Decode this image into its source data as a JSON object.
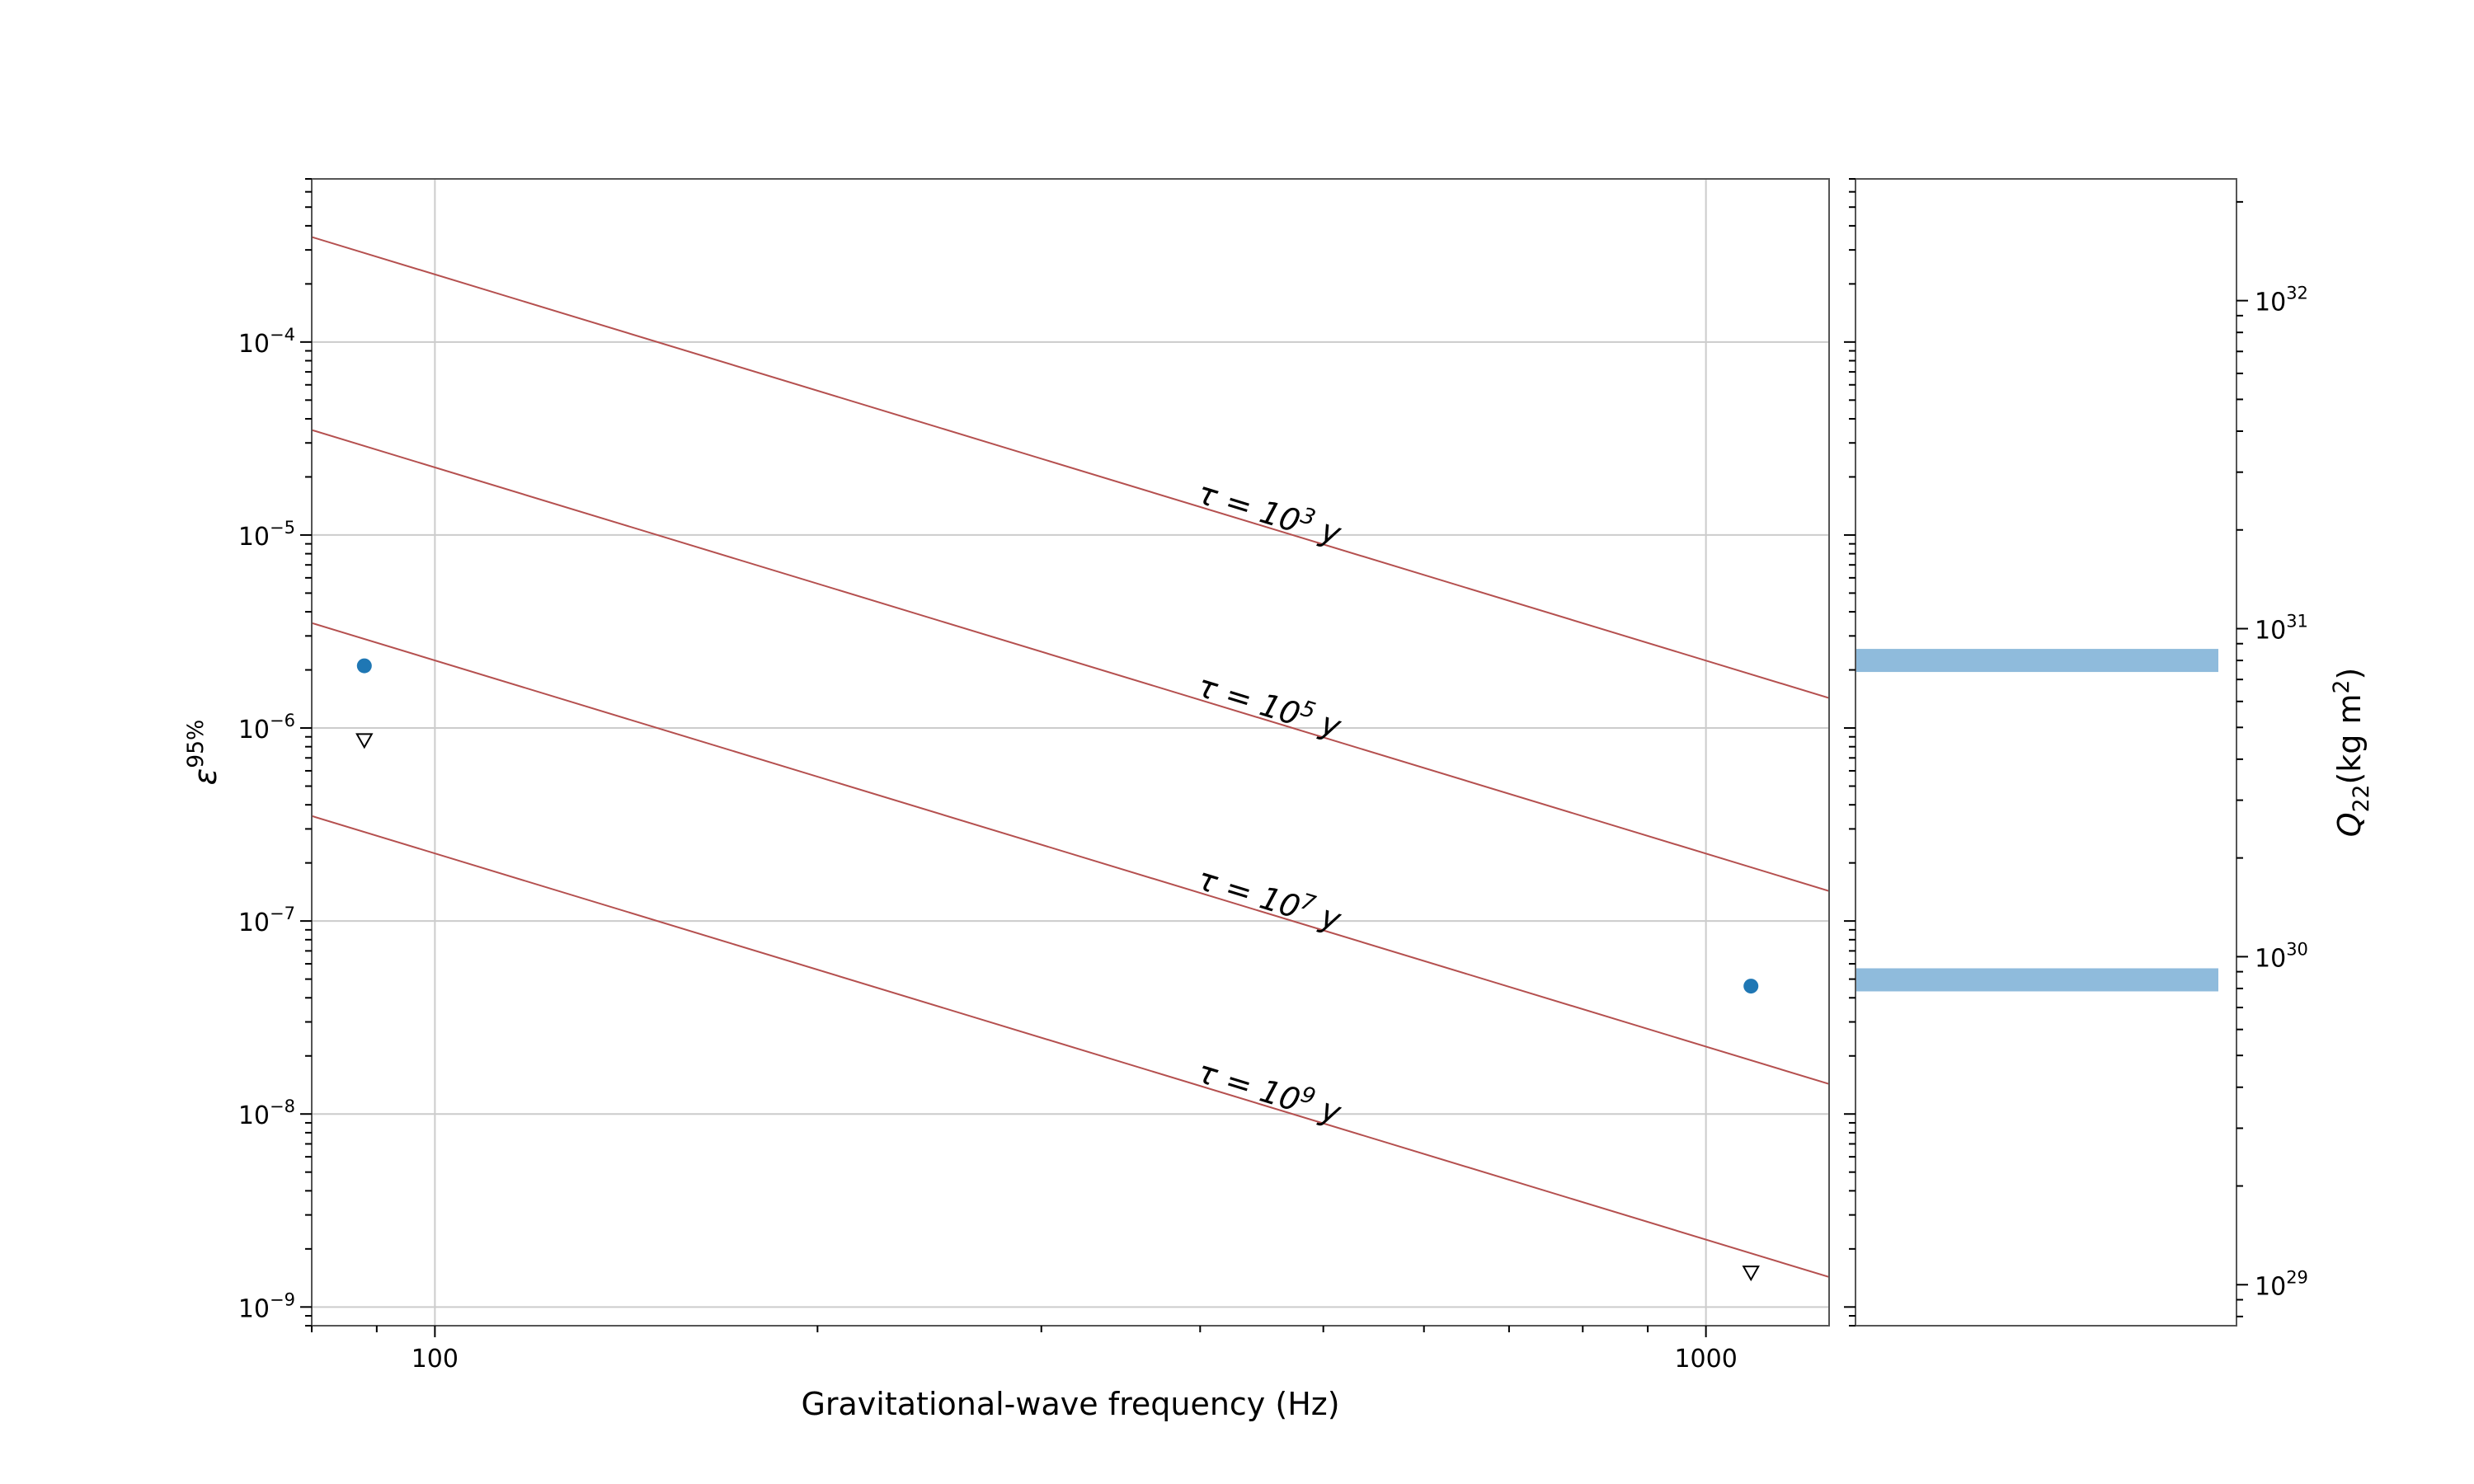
{
  "chart_data": [
    {
      "type": "scatter",
      "xlabel": "Gravitational-wave frequency (Hz)",
      "ylabel": "ε",
      "ylabel_sup": "95%",
      "xscale": "log",
      "yscale": "log",
      "xlim": [
        80,
        1250
      ],
      "ylim": [
        8e-10,
        0.0007
      ],
      "grid": true,
      "x_ticks": [
        {
          "value": 100,
          "label": "100"
        },
        {
          "value": 1000,
          "label": "1000"
        }
      ],
      "y_ticks": [
        {
          "value": 1e-09,
          "base": "10",
          "exp": "−9"
        },
        {
          "value": 1e-08,
          "base": "10",
          "exp": "−8"
        },
        {
          "value": 1e-07,
          "base": "10",
          "exp": "−7"
        },
        {
          "value": 1e-06,
          "base": "10",
          "exp": "−6"
        },
        {
          "value": 1e-05,
          "base": "10",
          "exp": "−5"
        },
        {
          "value": 0.0001,
          "base": "10",
          "exp": "−4"
        }
      ],
      "spin_down_lines": [
        {
          "label_pre": "τ = 10",
          "label_exp": "3",
          "label_post": " y",
          "x": [
            80,
            1250
          ],
          "y": [
            0.00035,
            1.43e-06
          ],
          "label_x": 450
        },
        {
          "label_pre": "τ = 10",
          "label_exp": "5",
          "label_post": " y",
          "x": [
            80,
            1250
          ],
          "y": [
            3.5e-05,
            1.43e-07
          ],
          "label_x": 450
        },
        {
          "label_pre": "τ = 10",
          "label_exp": "7",
          "label_post": " y",
          "x": [
            80,
            1250
          ],
          "y": [
            3.5e-06,
            1.43e-08
          ],
          "label_x": 450
        },
        {
          "label_pre": "τ = 10",
          "label_exp": "9",
          "label_post": " y",
          "x": [
            80,
            1250
          ],
          "y": [
            3.5e-07,
            1.43e-09
          ],
          "label_x": 450
        }
      ],
      "series": [
        {
          "marker": "circle",
          "points": [
            {
              "x": 88,
              "y": 2.1e-06
            },
            {
              "x": 1085,
              "y": 4.6e-08
            }
          ]
        },
        {
          "marker": "triangle-down",
          "points": [
            {
              "x": 88,
              "y": 8.6e-07
            },
            {
              "x": 1085,
              "y": 1.5e-09
            }
          ]
        }
      ],
      "colors": {
        "line": "#b5504f",
        "point": "#1f77b4",
        "grid": "#cccccc"
      }
    },
    {
      "type": "bar",
      "orientation": "horizontal-band",
      "ylabel": "Q",
      "ylabel_sub": "22",
      "ylabel_unit": "(kg m",
      "ylabel_unit_sup": "2",
      "ylabel_unit_end": ")",
      "yscale": "log",
      "ylim": [
        7.5e+28,
        2.35e+32
      ],
      "y_ticks": [
        {
          "value": 1e+29,
          "base": "10",
          "exp": "29"
        },
        {
          "value": 1e+30,
          "base": "10",
          "exp": "30"
        },
        {
          "value": 1e+31,
          "base": "10",
          "exp": "31"
        },
        {
          "value": 1e+32,
          "base": "10",
          "exp": "32"
        }
      ],
      "bands": [
        {
          "y": 8e+30
        },
        {
          "y": 8.5e+29
        }
      ],
      "colors": {
        "band": "#8fbbdc"
      }
    }
  ]
}
